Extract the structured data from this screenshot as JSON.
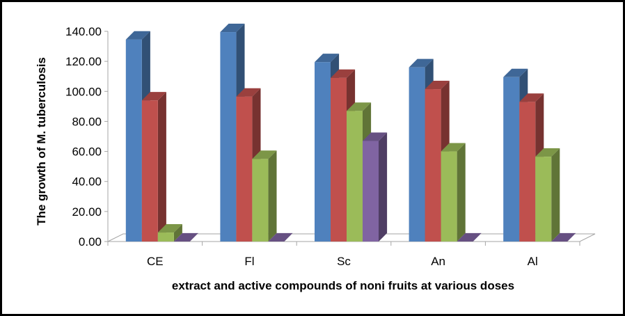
{
  "chart_data": {
    "type": "bar",
    "style": "3d-clustered-column",
    "title": "",
    "xlabel": "extract and active compounds of noni fruits at various doses",
    "ylabel": "The growth of M. tuberculosis",
    "ylim": [
      0,
      140
    ],
    "yticks": [
      "0.00",
      "20.00",
      "40.00",
      "60.00",
      "80.00",
      "100.00",
      "120.00",
      "140.00"
    ],
    "grid": false,
    "legend": "none",
    "categories": [
      "CE",
      "Fl",
      "Sc",
      "An",
      "Al"
    ],
    "series": [
      {
        "color": "#4F81BD",
        "values": [
          134.5,
          139.5,
          119.5,
          116.0,
          109.5
        ]
      },
      {
        "color": "#C0504D",
        "values": [
          94.0,
          96.5,
          109.0,
          101.5,
          93.0
        ]
      },
      {
        "color": "#9BBB59",
        "values": [
          6.0,
          55.0,
          87.0,
          60.0,
          56.5
        ]
      },
      {
        "color": "#8064A2",
        "values": [
          0,
          0,
          67.0,
          0,
          0
        ]
      }
    ]
  }
}
